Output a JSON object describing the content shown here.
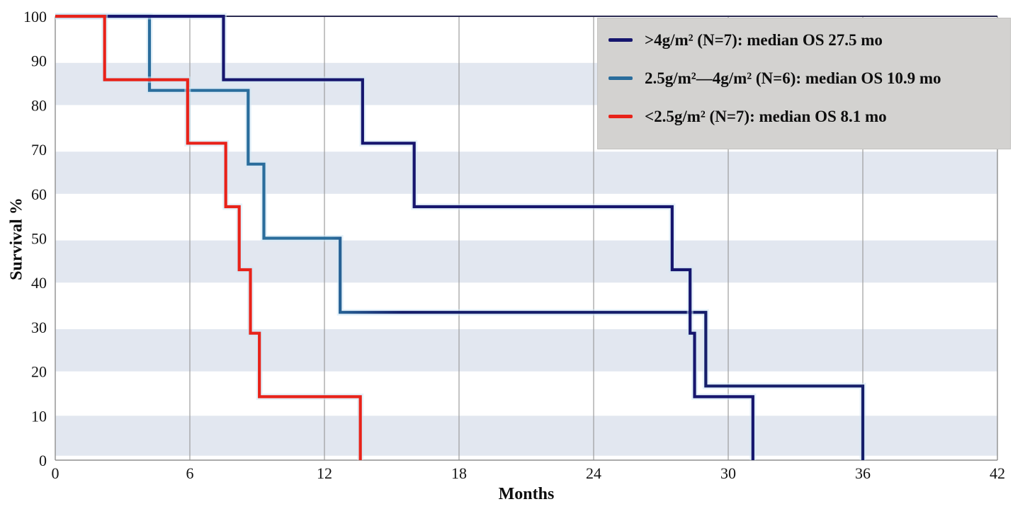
{
  "chart_data": {
    "type": "line",
    "subtype": "kaplan-meier-step",
    "title": "",
    "xlabel": "Months",
    "ylabel": "Survival %",
    "xlim": [
      0,
      42
    ],
    "ylim": [
      0,
      100
    ],
    "x_ticks": [
      0,
      6,
      12,
      18,
      24,
      30,
      36,
      42
    ],
    "y_ticks": [
      0,
      10,
      20,
      30,
      40,
      50,
      60,
      70,
      80,
      90,
      100
    ],
    "grid": "vertical gridlines at each x tick; horizontal shaded bands instead of y gridlines",
    "gridline_color": "#9c9c9c",
    "band_color": "#e2e7f0",
    "bands_pct": [
      [
        1,
        10
      ],
      [
        20,
        29.5
      ],
      [
        40,
        49.5
      ],
      [
        60,
        69.5
      ],
      [
        80,
        89.5
      ]
    ],
    "legend_position": "top-right",
    "legend_bg_color": "#d3d2d0",
    "series": [
      {
        "name": ">4g/m² (N=7): median OS 27.5 mo",
        "group": ">4g/m²",
        "n": 7,
        "median_os_mo": 27.5,
        "color": "#16166e",
        "points_time_mo_vs_survival_pct": [
          [
            0,
            100
          ],
          [
            7.5,
            85.7
          ],
          [
            13.7,
            71.4
          ],
          [
            16,
            57.1
          ],
          [
            27.5,
            42.9
          ],
          [
            28.3,
            28.6
          ],
          [
            28.5,
            14.3
          ],
          [
            31.1,
            0
          ]
        ]
      },
      {
        "name": "2.5g/m²—4g/m² (N=6): median OS 10.9 mo",
        "group": "2.5g/m²–4g/m²",
        "n": 6,
        "median_os_mo": 10.9,
        "color": "#2a6d9c",
        "color_late": "#161f6b",
        "points_time_mo_vs_survival_pct": [
          [
            0,
            100
          ],
          [
            4.2,
            83.3
          ],
          [
            8.6,
            66.7
          ],
          [
            9.3,
            50
          ],
          [
            12.7,
            33.3
          ],
          [
            29,
            16.7
          ],
          [
            36,
            0
          ]
        ]
      },
      {
        "name": "<2.5g/m² (N=7): median OS 8.1 mo",
        "group": "<2.5g/m²",
        "n": 7,
        "median_os_mo": 8.1,
        "color": "#e8231a",
        "points_time_mo_vs_survival_pct": [
          [
            0,
            100
          ],
          [
            2.2,
            85.7
          ],
          [
            5.9,
            71.4
          ],
          [
            7.6,
            57.1
          ],
          [
            8.2,
            42.9
          ],
          [
            8.7,
            28.6
          ],
          [
            9.1,
            14.3
          ],
          [
            13.6,
            0
          ]
        ]
      }
    ]
  }
}
